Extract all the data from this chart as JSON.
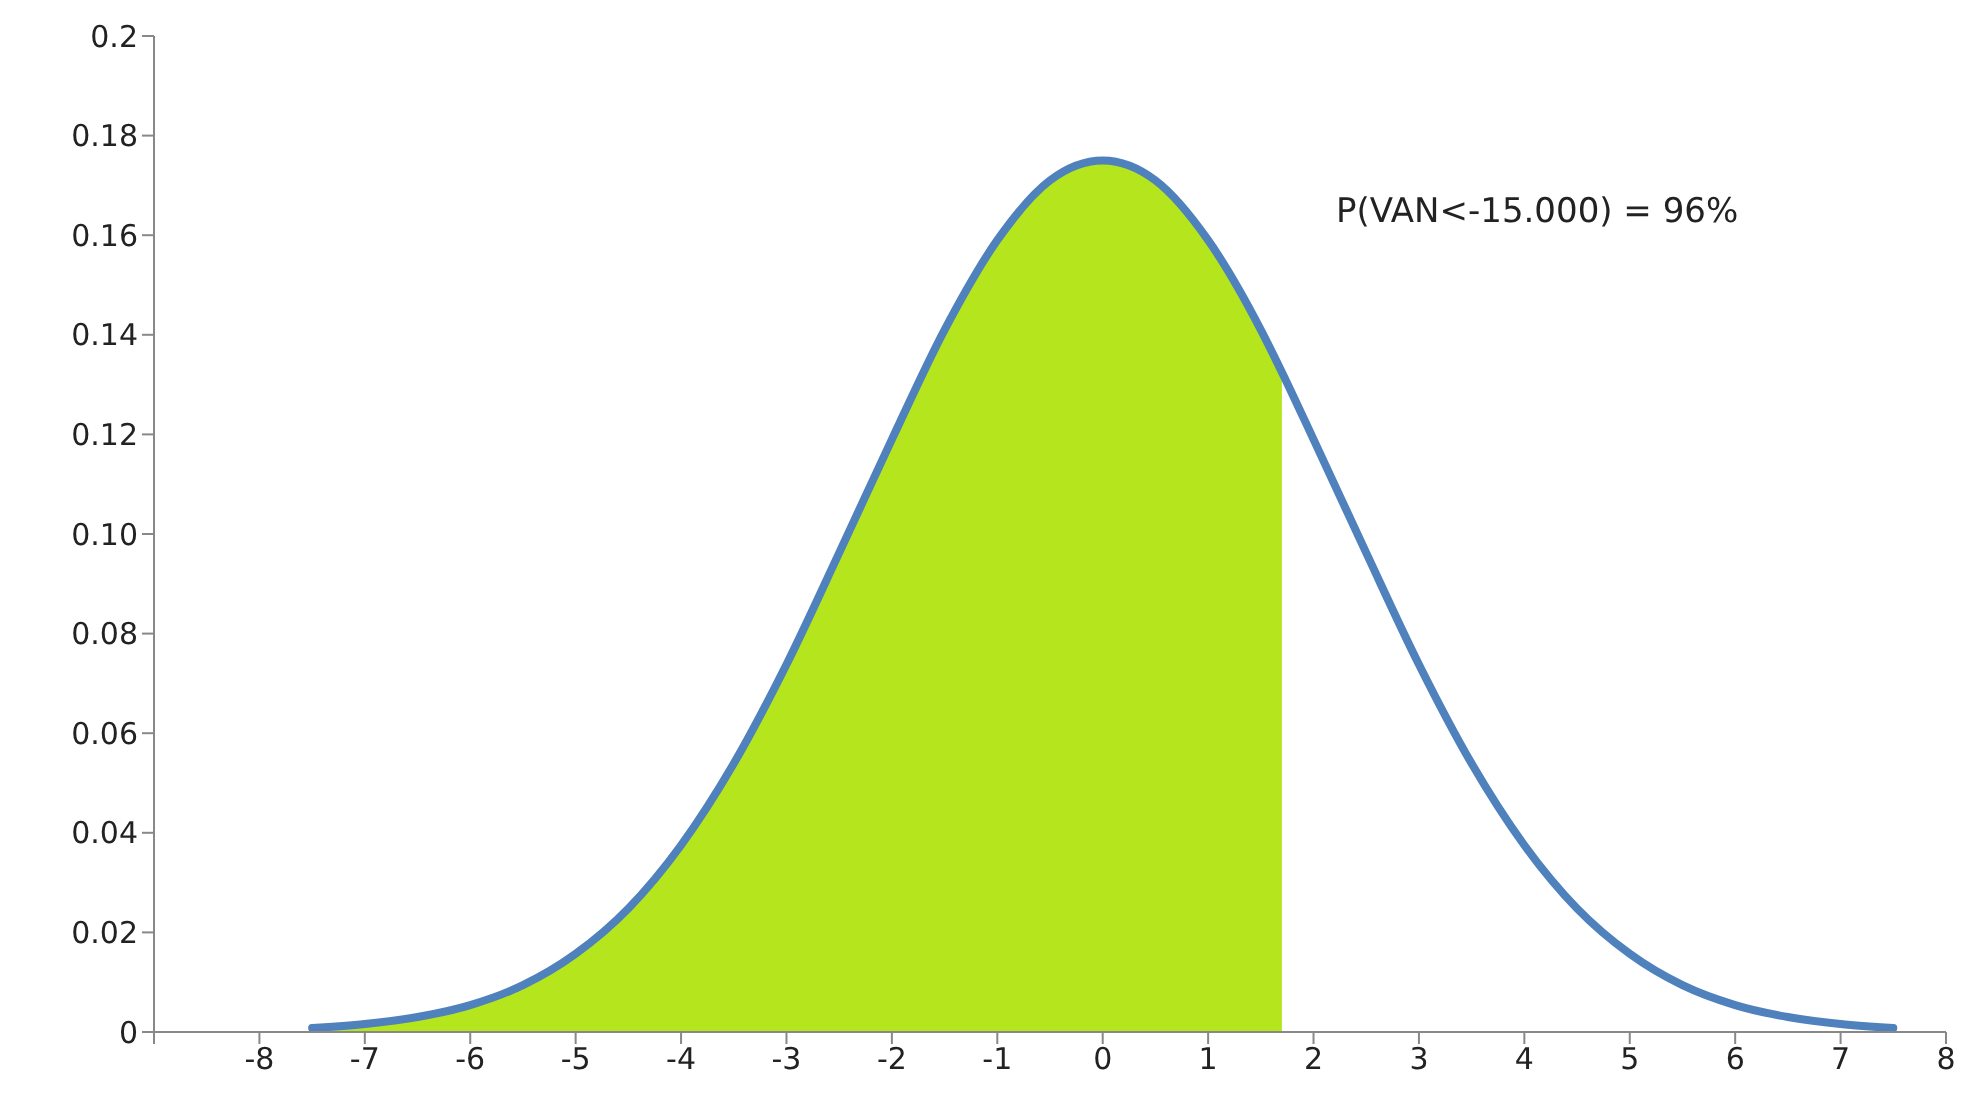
{
  "chart_data": {
    "type": "line",
    "annotations": [
      "P(VAN<-15.000) = 96%"
    ],
    "xlim": [
      -9,
      8
    ],
    "xticks": [
      {
        "value": -9,
        "label": null
      },
      -8,
      -7,
      -6,
      -5,
      -4,
      -3,
      -2,
      -1,
      0,
      1,
      2,
      3,
      4,
      5,
      6,
      7,
      8
    ],
    "ylim": [
      0,
      0.2
    ],
    "yticks": [
      0,
      0.02,
      0.04,
      0.06,
      0.08,
      {
        "value": 0.1,
        "label": "0.10"
      },
      0.12,
      0.14,
      0.16,
      0.18,
      0.2
    ],
    "series": [
      {
        "type": "area",
        "color": "#b5e61d",
        "x": [
          -7.5,
          -7,
          -6.5,
          -6,
          -5.5,
          -5,
          -4.5,
          -4,
          -3.5,
          -3,
          -2.5,
          -2,
          -1.5,
          -1,
          -0.5,
          0,
          0.5,
          1,
          1.5,
          1.7
        ],
        "values": [
          0.0008,
          0.0016,
          0.003,
          0.0054,
          0.0094,
          0.0157,
          0.0248,
          0.0375,
          0.0539,
          0.0738,
          0.0962,
          0.119,
          0.141,
          0.159,
          0.171,
          0.175,
          0.171,
          0.159,
          0.141,
          0.1325
        ]
      },
      {
        "color": "#4f81bd",
        "x": [
          -7.5,
          -7,
          -6.5,
          -6,
          -5.5,
          -5,
          -4.5,
          -4,
          -3.5,
          -3,
          -2.5,
          -2,
          -1.5,
          -1,
          -0.5,
          0,
          0.5,
          1,
          1.5,
          1.7,
          2,
          2.5,
          3,
          3.5,
          4,
          4.5,
          5,
          5.5,
          6,
          6.5,
          7,
          7.5
        ],
        "values": [
          0.0008,
          0.0016,
          0.003,
          0.0054,
          0.0094,
          0.0157,
          0.0248,
          0.0375,
          0.0539,
          0.0738,
          0.0962,
          0.119,
          0.141,
          0.159,
          0.171,
          0.175,
          0.171,
          0.159,
          0.141,
          0.1325,
          0.119,
          0.0962,
          0.0738,
          0.0539,
          0.0375,
          0.0248,
          0.0157,
          0.0094,
          0.0054,
          0.003,
          0.0016,
          0.0008
        ]
      }
    ]
  }
}
